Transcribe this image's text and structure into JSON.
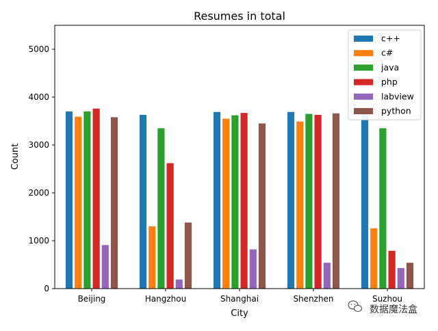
{
  "chart_data": {
    "type": "bar",
    "title": "Resumes in total",
    "xlabel": "City",
    "ylabel": "Count",
    "categories": [
      "Beijing",
      "Hangzhou",
      "Shanghai",
      "Shenzhen",
      "Suzhou"
    ],
    "ylim": [
      0,
      5500
    ],
    "yticks": [
      0,
      1000,
      2000,
      3000,
      4000,
      5000
    ],
    "grid": false,
    "legend_position": "top-right",
    "series": [
      {
        "name": "c++",
        "color": "#1f77b4",
        "values": [
          3700,
          3630,
          3690,
          3690,
          3700
        ]
      },
      {
        "name": "c#",
        "color": "#ff7f0e",
        "values": [
          3590,
          1300,
          3550,
          3490,
          1260
        ]
      },
      {
        "name": "java",
        "color": "#2ca02c",
        "values": [
          3700,
          3350,
          3620,
          3650,
          3350
        ]
      },
      {
        "name": "php",
        "color": "#d62728",
        "values": [
          3760,
          2620,
          3670,
          3630,
          790
        ]
      },
      {
        "name": "labview",
        "color": "#9467bd",
        "values": [
          910,
          190,
          820,
          540,
          430
        ]
      },
      {
        "name": "python",
        "color": "#8c564b",
        "values": [
          3580,
          1380,
          3450,
          3660,
          540
        ]
      }
    ]
  },
  "watermark": {
    "text": "数据魔法盒",
    "icon": "wechat-icon"
  }
}
